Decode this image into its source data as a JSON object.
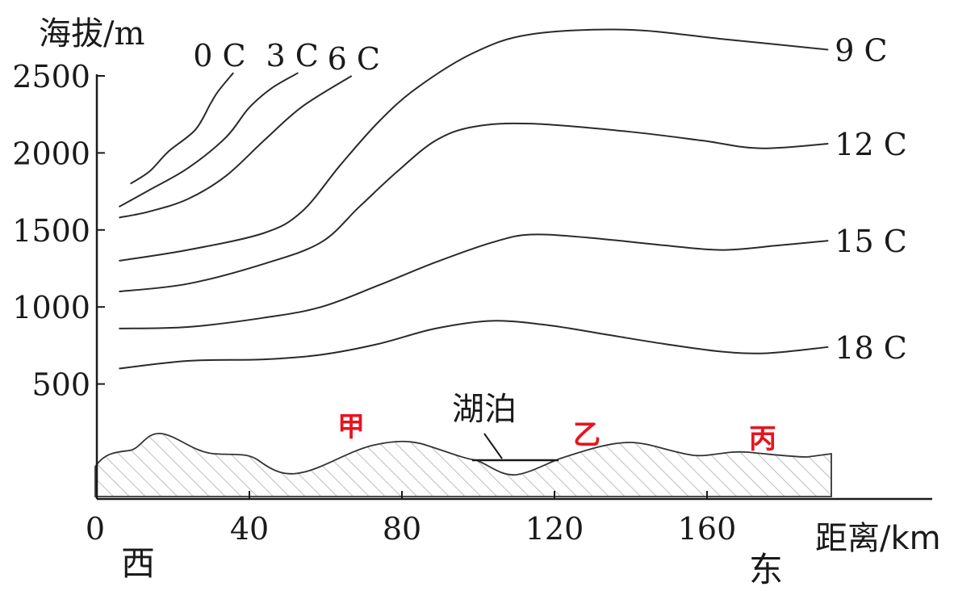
{
  "axes": {
    "y_label": "海拔/m",
    "x_label": "距离/km",
    "y_ticks": [
      500,
      1000,
      1500,
      2000,
      2500
    ],
    "x_ticks": [
      0,
      40,
      80,
      120,
      160
    ]
  },
  "directions": {
    "west": "西",
    "east": "东"
  },
  "places": {
    "jia": "甲",
    "yi": "乙",
    "bing": "丙"
  },
  "lake_label": "湖泊",
  "isotherms": [
    {
      "label": "0 C",
      "points": [
        [
          5,
          1800
        ],
        [
          10,
          1880
        ],
        [
          15,
          2010
        ],
        [
          22,
          2150
        ],
        [
          26,
          2320
        ],
        [
          28,
          2400
        ],
        [
          32,
          2520
        ]
      ]
    },
    {
      "label": "3 C",
      "points": [
        [
          2,
          1650
        ],
        [
          10,
          1760
        ],
        [
          20,
          1900
        ],
        [
          30,
          2100
        ],
        [
          36,
          2290
        ],
        [
          42,
          2420
        ],
        [
          49,
          2520
        ]
      ]
    },
    {
      "label": "6 C",
      "points": [
        [
          2,
          1580
        ],
        [
          10,
          1620
        ],
        [
          20,
          1700
        ],
        [
          30,
          1850
        ],
        [
          40,
          2080
        ],
        [
          50,
          2300
        ],
        [
          63,
          2500
        ]
      ]
    },
    {
      "label": "9 C",
      "points": [
        [
          2,
          1300
        ],
        [
          20,
          1370
        ],
        [
          40,
          1480
        ],
        [
          50,
          1620
        ],
        [
          60,
          1920
        ],
        [
          70,
          2200
        ],
        [
          80,
          2420
        ],
        [
          95,
          2650
        ],
        [
          110,
          2770
        ],
        [
          135,
          2800
        ],
        [
          160,
          2740
        ],
        [
          188,
          2670
        ]
      ]
    },
    {
      "label": "12 C",
      "points": [
        [
          2,
          1100
        ],
        [
          20,
          1150
        ],
        [
          40,
          1280
        ],
        [
          55,
          1420
        ],
        [
          65,
          1650
        ],
        [
          75,
          1880
        ],
        [
          85,
          2080
        ],
        [
          95,
          2170
        ],
        [
          110,
          2190
        ],
        [
          135,
          2140
        ],
        [
          155,
          2080
        ],
        [
          170,
          2030
        ],
        [
          188,
          2060
        ]
      ]
    },
    {
      "label": "15 C",
      "points": [
        [
          2,
          860
        ],
        [
          20,
          870
        ],
        [
          40,
          930
        ],
        [
          55,
          1000
        ],
        [
          70,
          1140
        ],
        [
          85,
          1290
        ],
        [
          100,
          1420
        ],
        [
          110,
          1470
        ],
        [
          125,
          1450
        ],
        [
          145,
          1400
        ],
        [
          160,
          1370
        ],
        [
          175,
          1400
        ],
        [
          188,
          1430
        ]
      ]
    },
    {
      "label": "18 C",
      "points": [
        [
          2,
          600
        ],
        [
          20,
          650
        ],
        [
          40,
          660
        ],
        [
          55,
          690
        ],
        [
          70,
          760
        ],
        [
          85,
          860
        ],
        [
          100,
          910
        ],
        [
          115,
          880
        ],
        [
          130,
          820
        ],
        [
          145,
          760
        ],
        [
          160,
          710
        ],
        [
          172,
          700
        ],
        [
          188,
          740
        ]
      ]
    }
  ]
}
